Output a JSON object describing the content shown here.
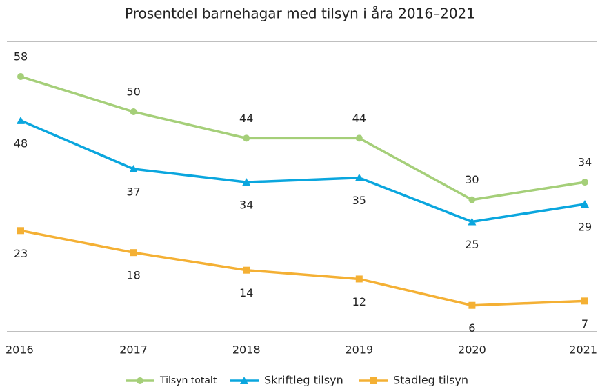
{
  "chart_data": {
    "type": "line",
    "title": "Prosentdel barnehagar med tilsyn i åra 2016–2021",
    "categories": [
      "2016",
      "2017",
      "2018",
      "2019",
      "2020",
      "2021"
    ],
    "series": [
      {
        "name": "Tilsyn totalt",
        "color": "#a5cf79",
        "marker": "circle",
        "values": [
          58,
          50,
          44,
          44,
          30,
          34
        ]
      },
      {
        "name": "Skriftleg tilsyn",
        "color": "#0aa6de",
        "marker": "triangle",
        "values": [
          48,
          37,
          34,
          35,
          25,
          29
        ]
      },
      {
        "name": "Stadleg tilsyn",
        "color": "#f4b034",
        "marker": "square",
        "values": [
          23,
          18,
          14,
          12,
          6,
          7
        ]
      }
    ],
    "ylim": [
      0,
      66
    ],
    "legend": "bottom"
  }
}
